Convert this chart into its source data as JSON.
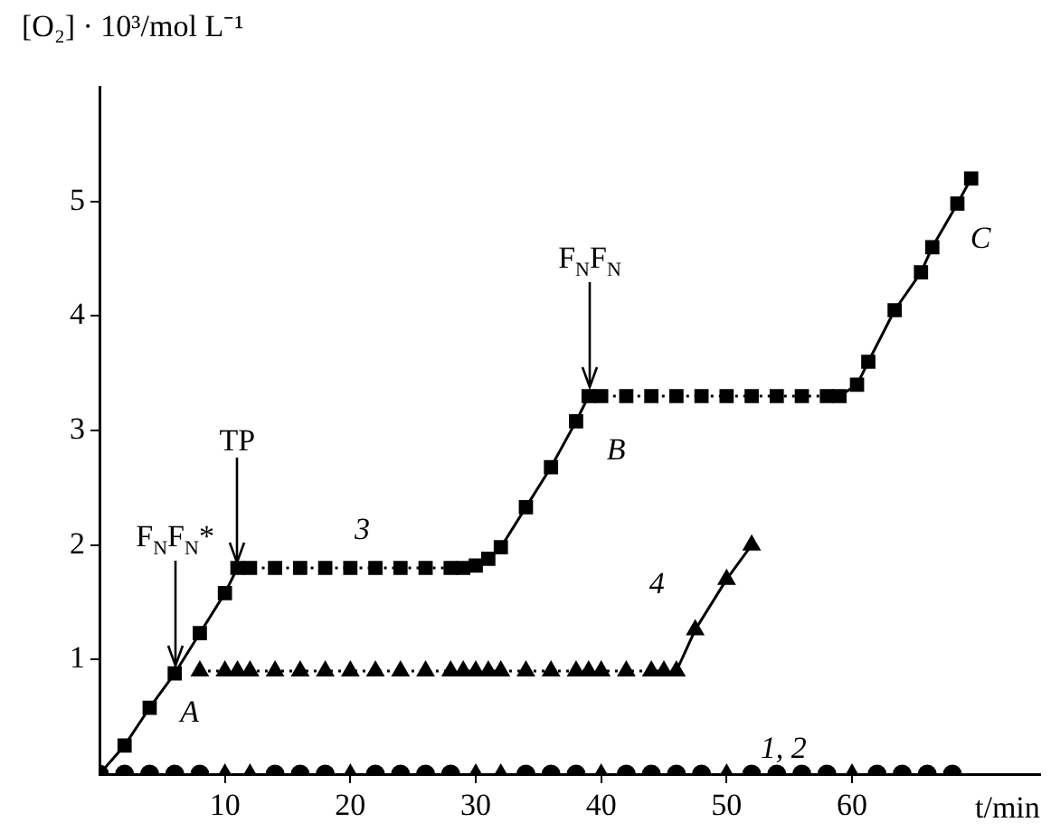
{
  "chart_data": {
    "type": "line",
    "xlabel": "t/min",
    "ylabel": "[O₂] · 10³/mol L⁻¹",
    "xlim": [
      0,
      75
    ],
    "xticks": [
      10,
      20,
      30,
      40,
      50,
      60
    ],
    "ylim": [
      0,
      6
    ],
    "yticks": [
      1,
      2,
      3,
      4,
      5
    ],
    "grid": false,
    "legend": false,
    "series": [
      {
        "type": "scatter",
        "color": "#000000",
        "marker": "circle",
        "x": [
          0,
          2,
          4,
          6,
          8,
          14,
          16,
          18,
          22,
          24,
          26,
          28,
          34,
          36,
          38,
          42,
          44,
          46,
          48,
          52,
          54,
          56,
          58,
          62,
          64,
          66,
          68
        ],
        "values": [
          0,
          0,
          0,
          0,
          0,
          0,
          0,
          0,
          0,
          0,
          0,
          0,
          0,
          0,
          0,
          0,
          0,
          0,
          0,
          0,
          0,
          0,
          0,
          0,
          0,
          0,
          0
        ]
      },
      {
        "type": "scatter",
        "color": "#000000",
        "marker": "triangle",
        "x": [
          10,
          12,
          20,
          30,
          32,
          40,
          50,
          60
        ],
        "values": [
          0,
          0,
          0,
          0,
          0,
          0,
          0,
          0
        ]
      },
      {
        "color": "#000000",
        "marker": "square",
        "x": [
          0,
          2,
          4,
          6,
          8,
          10,
          11,
          12,
          14,
          16,
          18,
          20,
          22,
          24,
          26,
          28,
          29,
          30,
          31,
          32,
          34,
          36,
          38,
          39,
          40,
          42,
          44,
          46,
          48,
          50,
          52,
          54,
          56,
          58,
          59,
          60.4,
          61.3,
          63.4,
          65.5,
          66.4,
          68.4,
          69.5
        ],
        "values": [
          0,
          0.25,
          0.58,
          0.88,
          1.23,
          1.58,
          1.8,
          1.8,
          1.8,
          1.8,
          1.8,
          1.8,
          1.8,
          1.8,
          1.8,
          1.8,
          1.8,
          1.82,
          1.88,
          1.98,
          2.33,
          2.68,
          3.08,
          3.3,
          3.3,
          3.3,
          3.3,
          3.3,
          3.3,
          3.3,
          3.3,
          3.3,
          3.3,
          3.3,
          3.3,
          3.4,
          3.6,
          4.05,
          4.38,
          4.6,
          4.98,
          5.2
        ]
      },
      {
        "color": "#000000",
        "marker": "triangle",
        "x": [
          8,
          10,
          11,
          12,
          14,
          16,
          18,
          20,
          22,
          24,
          26,
          28,
          29,
          30,
          31,
          32,
          34,
          36,
          38,
          39,
          40,
          42,
          44,
          45,
          46,
          47.5,
          50,
          52
        ],
        "values": [
          0.9,
          0.9,
          0.9,
          0.9,
          0.9,
          0.9,
          0.9,
          0.9,
          0.9,
          0.9,
          0.9,
          0.9,
          0.9,
          0.9,
          0.9,
          0.9,
          0.9,
          0.9,
          0.9,
          0.9,
          0.9,
          0.9,
          0.9,
          0.9,
          0.9,
          1.26,
          1.7,
          2.0
        ]
      }
    ],
    "annotations": [
      {
        "text": "F$_{N}$F$_{N}$*",
        "x": 6,
        "y": 0.95
      },
      {
        "text": "TP",
        "x": 11,
        "y": 1.85
      },
      {
        "text": "F$_{N}$F$_{N}$",
        "x": 39.1,
        "y": 3.38
      },
      {
        "text": "A",
        "x": 6,
        "y": 0.88
      },
      {
        "text": "B",
        "x": 39,
        "y": 3.3
      },
      {
        "text": "C",
        "x": 69.5,
        "y": 5.2
      },
      {
        "text": "3",
        "x": 22,
        "y": 1.8
      },
      {
        "text": "4",
        "x": 47.5,
        "y": 1.26
      },
      {
        "text": "1, 2",
        "x": 54,
        "y": 0
      }
    ]
  }
}
